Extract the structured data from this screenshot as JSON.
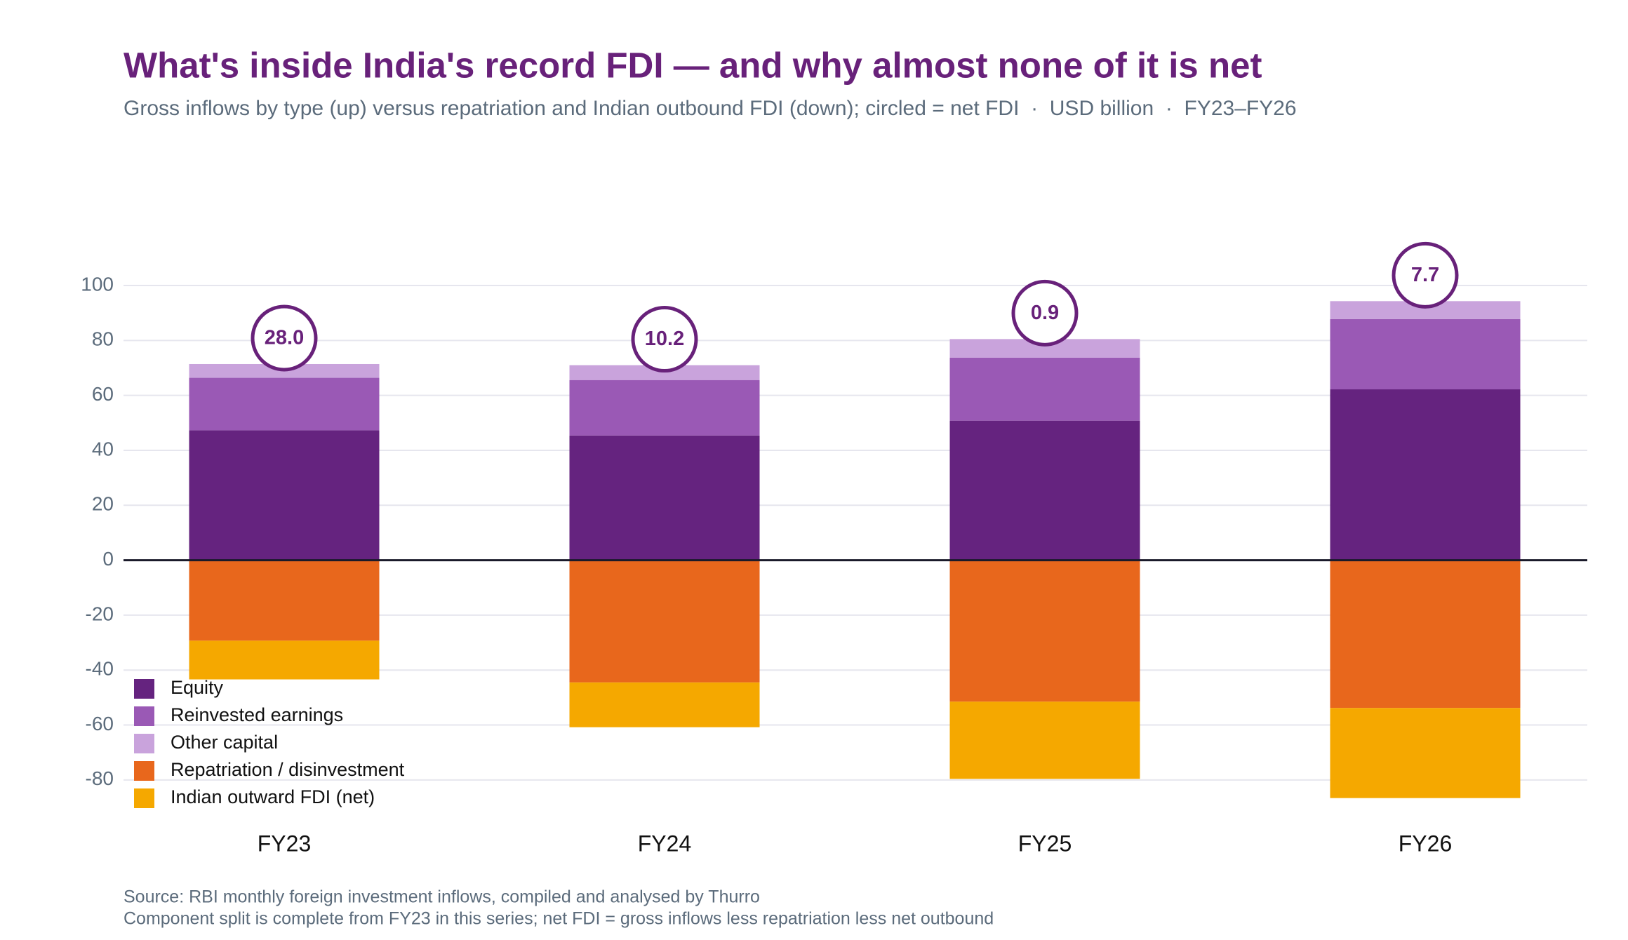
{
  "chart_data": {
    "type": "bar",
    "title": "What's inside India's record FDI — and why almost none of it is net",
    "subtitle": "Gross inflows by type (up) versus repatriation and Indian outbound FDI (down); circled = net FDI  ·  USD billion  ·  FY23–FY26",
    "categories": [
      "FY23",
      "FY24",
      "FY25",
      "FY26"
    ],
    "series": [
      {
        "name": "Equity",
        "color": "#65237f",
        "values": [
          47.3,
          45.4,
          50.8,
          62.2
        ]
      },
      {
        "name": "Reinvested earnings",
        "color": "#9a59b5",
        "values": [
          19.1,
          20.2,
          22.9,
          25.6
        ]
      },
      {
        "name": "Other capital",
        "color": "#c9a3dc",
        "values": [
          5.0,
          5.4,
          6.8,
          6.5
        ]
      },
      {
        "name": "Repatriation / disinvestment",
        "color": "#e8671c",
        "values": [
          -29.3,
          -44.5,
          -51.5,
          -53.8
        ]
      },
      {
        "name": "Indian outward FDI (net)",
        "color": "#f5a800",
        "values": [
          -14.1,
          -16.3,
          -28.1,
          -32.8
        ]
      }
    ],
    "net_values": [
      28.0,
      10.2,
      0.9,
      7.7
    ],
    "value_labels": [
      "28.0",
      "10.2",
      "0.9",
      "7.7"
    ],
    "net_color": "#68217a",
    "ylim": [
      -90,
      100
    ],
    "yticks": [
      -80,
      -60,
      -40,
      -20,
      0,
      20,
      40,
      60,
      80,
      100
    ],
    "grid": true,
    "legend": "lower-left",
    "source": "Source: RBI monthly foreign investment inflows, compiled and analysed by Thurro",
    "note": "Component split is complete from FY23 in this series; net FDI = gross inflows less repatriation less net outbound"
  }
}
